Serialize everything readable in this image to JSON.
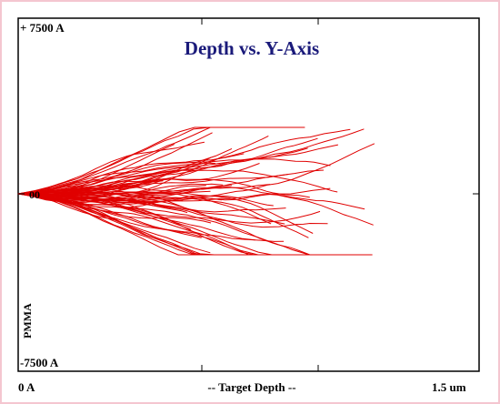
{
  "title": "Depth vs. Y-Axis",
  "axis_labels": {
    "y_top": "+ 7500 A",
    "y_bottom": "-7500 A",
    "origin": "00",
    "x_left": "0 A",
    "x_center": "-- Target Depth --",
    "x_right": "1.5 um"
  },
  "target": "PMMA"
}
